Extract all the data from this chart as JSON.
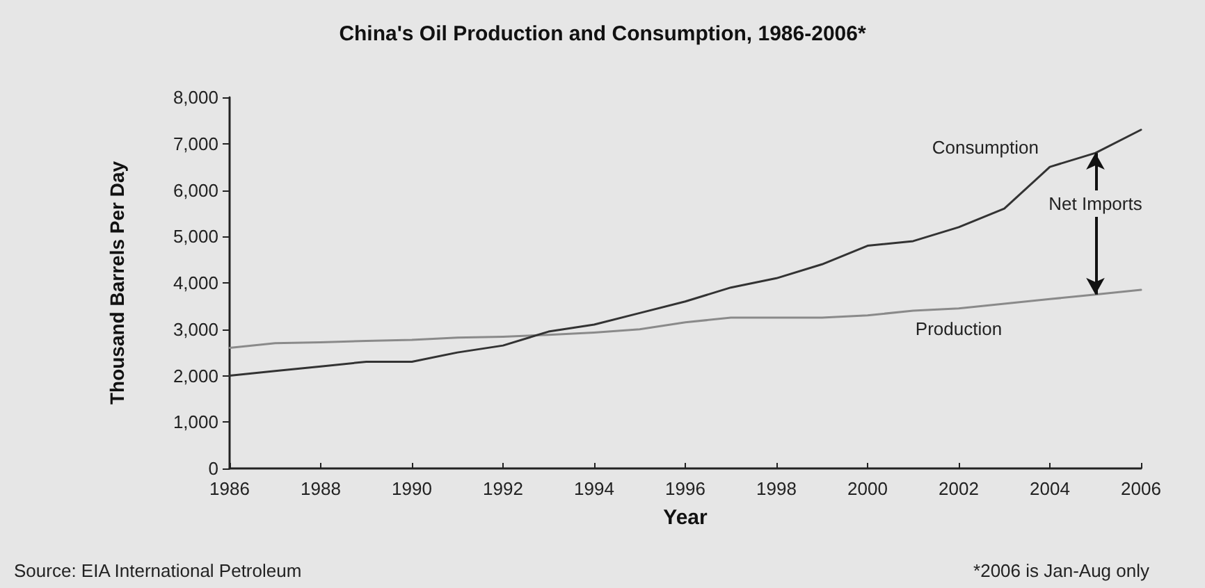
{
  "chart_data": {
    "type": "line",
    "title": "China's Oil Production and Consumption, 1986-2006*",
    "xlabel": "Year",
    "ylabel": "Thousand Barrels Per Day",
    "x": [
      1986,
      1987,
      1988,
      1989,
      1990,
      1991,
      1992,
      1993,
      1994,
      1995,
      1996,
      1997,
      1998,
      1999,
      2000,
      2001,
      2002,
      2003,
      2004,
      2005,
      2006
    ],
    "series": [
      {
        "name": "Consumption",
        "color": "#333333",
        "values": [
          2000,
          2100,
          2200,
          2300,
          2300,
          2500,
          2650,
          2950,
          3100,
          3350,
          3600,
          3900,
          4100,
          4400,
          4800,
          4900,
          5200,
          5600,
          6500,
          6800,
          7300
        ]
      },
      {
        "name": "Production",
        "color": "#8a8a8a",
        "values": [
          2600,
          2700,
          2720,
          2750,
          2770,
          2820,
          2840,
          2880,
          2930,
          3000,
          3150,
          3250,
          3250,
          3250,
          3300,
          3400,
          3450,
          3550,
          3650,
          3750,
          3850
        ]
      }
    ],
    "xlim": [
      1986,
      2006
    ],
    "xticks": [
      {
        "value": 1986,
        "label": "1986"
      },
      {
        "value": 1988,
        "label": "1988"
      },
      {
        "value": 1990,
        "label": "1990"
      },
      {
        "value": 1992,
        "label": "1992"
      },
      {
        "value": 1994,
        "label": "1994"
      },
      {
        "value": 1996,
        "label": "1996"
      },
      {
        "value": 1998,
        "label": "1998"
      },
      {
        "value": 2000,
        "label": "2000"
      },
      {
        "value": 2002,
        "label": "2002"
      },
      {
        "value": 2004,
        "label": "2004"
      },
      {
        "value": 2006,
        "label": "2006"
      }
    ],
    "ylim": [
      0,
      8000
    ],
    "yticks": [
      0,
      {
        "value": 1000,
        "label": "1,000"
      },
      {
        "value": 2000,
        "label": "2,000"
      },
      {
        "value": 3000,
        "label": "3,000"
      },
      {
        "value": 4000,
        "label": "4,000"
      },
      {
        "value": 5000,
        "label": "5,000"
      },
      {
        "value": 6000,
        "label": "6,000"
      },
      {
        "value": 7000,
        "label": "7,000"
      },
      {
        "value": 8000,
        "label": "8,000"
      }
    ],
    "grid": false,
    "legend": false,
    "marker": "none",
    "line_style": "solid",
    "annotations": [
      "Net Imports",
      "Source: EIA International Petroleum",
      "*2006 is Jan-Aug only"
    ]
  }
}
